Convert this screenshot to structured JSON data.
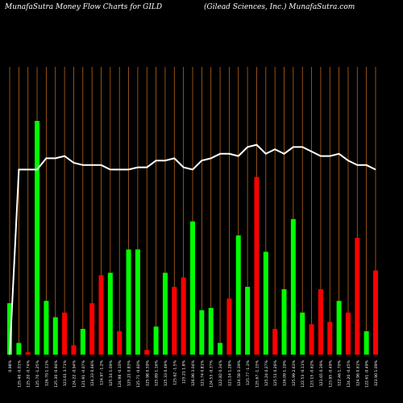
{
  "header": {
    "left": "MunafaSutra  Money Flow  Charts for GILD",
    "right": "(Gilead Sciences,  Inc.) MunafaSutra.com"
  },
  "colors": {
    "background": "#000000",
    "up": "#00ff00",
    "down": "#ff0000",
    "grid": "#b8651b",
    "line": "#ffffff",
    "text": "#ffffff"
  },
  "chart_data": {
    "type": "bar",
    "title": "MunafaSutra  Money Flow  Charts for GILD",
    "subtitle": "(Gilead Sciences,  Inc.) MunafaSutra.com",
    "categories": [
      "0.98%",
      "125.40 -0.01%",
      "125.20 -0.74%",
      "125.70 -1.25%",
      "126.70 1.11%",
      "125.30 -0.94%",
      "123.61 3.71%",
      "124.22 -0.94%",
      "121.91 -0.07%",
      "124.33 0.66%",
      "124.97 -1.2%",
      "125.14 1.09%",
      "124.98 -0.10%",
      "125.21 0.83%",
      "125.71 -0.60%",
      "125.98 0.59%",
      "125.89 1.16%",
      "125.33 0.49%",
      "125.62 -1.5%",
      "125.21 1.8%",
      "126.96 3.04%",
      "121.74 0.81%",
      "124.53 -0.37%",
      "122.82 0.34%",
      "121.14 1.28%",
      "124.58 0.39%",
      "125.77 -1.3%",
      "125.67 -1.15%",
      "125.24 0.27%",
      "125.51 0.26%",
      "126.09 1.19%",
      "125.99 2.63%",
      "122.53 -0.11%",
      "123.15 -0.62%",
      "123.65 0.39%",
      "123.95 -0.49%",
      "122.46 1.70%",
      "124.20 -0.45%",
      "124.96 0.61%",
      "122.61 -0.49%",
      "123.90 1.09%"
    ],
    "values": [
      0.22,
      0.05,
      0.01,
      1.0,
      0.23,
      0.16,
      0.18,
      0.04,
      0.11,
      0.22,
      0.34,
      0.35,
      0.1,
      0.45,
      0.45,
      0.02,
      0.12,
      0.35,
      0.29,
      0.33,
      0.57,
      0.19,
      0.2,
      0.05,
      0.24,
      0.51,
      0.29,
      0.76,
      0.44,
      0.11,
      0.28,
      0.58,
      0.18,
      0.13,
      0.28,
      0.14,
      0.23,
      0.18,
      0.5,
      0.1,
      0.36
    ],
    "colors": [
      "green",
      "green",
      "red",
      "green",
      "green",
      "green",
      "red",
      "red",
      "green",
      "red",
      "red",
      "green",
      "red",
      "green",
      "green",
      "red",
      "green",
      "green",
      "red",
      "red",
      "green",
      "green",
      "green",
      "green",
      "red",
      "green",
      "green",
      "red",
      "green",
      "red",
      "green",
      "green",
      "green",
      "red",
      "red",
      "red",
      "green",
      "red",
      "red",
      "green",
      "red"
    ],
    "line": [
      0.0,
      0.82,
      0.82,
      0.82,
      0.87,
      0.87,
      0.88,
      0.85,
      0.84,
      0.84,
      0.84,
      0.82,
      0.82,
      0.82,
      0.83,
      0.83,
      0.86,
      0.86,
      0.87,
      0.83,
      0.82,
      0.86,
      0.87,
      0.89,
      0.89,
      0.88,
      0.92,
      0.93,
      0.89,
      0.91,
      0.89,
      0.92,
      0.92,
      0.9,
      0.88,
      0.88,
      0.89,
      0.86,
      0.84,
      0.84,
      0.82
    ],
    "ylim": [
      0,
      1
    ],
    "grid": true,
    "xlabel": "",
    "ylabel": ""
  }
}
